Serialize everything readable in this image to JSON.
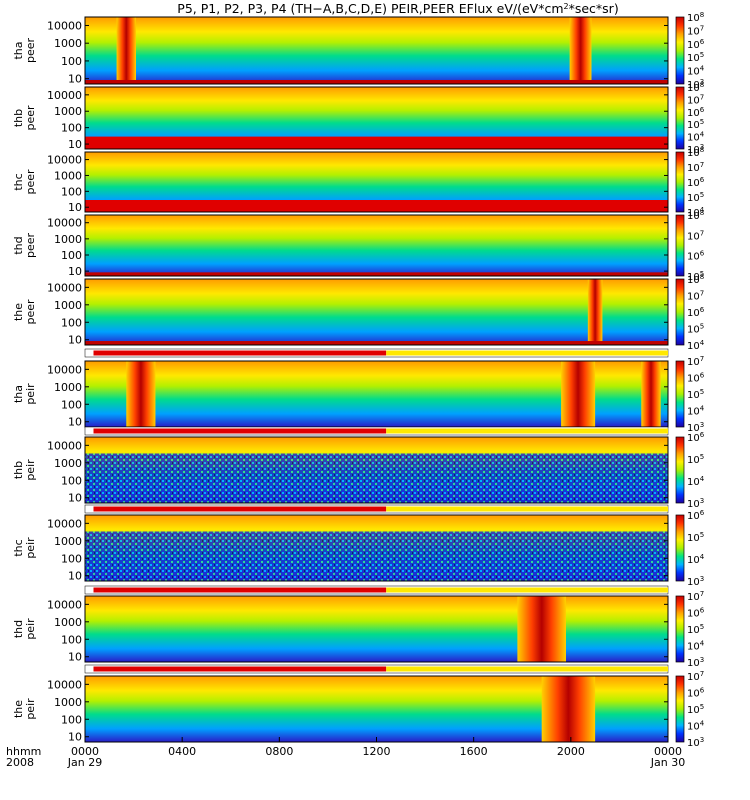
{
  "chart_data": {
    "type": "heatmap",
    "title": "P5, P1, P2, P3, P4 (TH-A,B,C,D,E) PEIR,PEER EFlux eV/(eV*cm^2*sec*sr)",
    "title_parts": {
      "main": "P5, P1, P2, P3, P4 (TH−A,B,C,D,E) PEIR,PEER EFlux eV/(eV*cm",
      "sup": "2",
      "tail": "*sec*sr)"
    },
    "x_axis": {
      "row1_label": "hhmm",
      "row2_label": "2008",
      "ticks": [
        "0000",
        "0400",
        "0800",
        "1200",
        "1600",
        "2000",
        "0000"
      ],
      "dates": [
        "Jan 29",
        "Jan 30"
      ],
      "range_hours": [
        0,
        24
      ]
    },
    "y_ticks": [
      "10",
      "100",
      "1000",
      "10000"
    ],
    "y_range_eV": [
      5,
      30000
    ],
    "y_scale": "log",
    "colormap": [
      "#1e00a0",
      "#0032ff",
      "#00b4ff",
      "#00e682",
      "#aaf000",
      "#fff000",
      "#ffa000",
      "#ff3200",
      "#c80000"
    ],
    "panels": [
      {
        "probe": "tha",
        "instrument": "peer",
        "cbar_exp": [
          3,
          8
        ],
        "qflag": false,
        "floor": "thin"
      },
      {
        "probe": "thb",
        "instrument": "peer",
        "cbar_exp": [
          3,
          8
        ],
        "qflag": false,
        "floor": "thick"
      },
      {
        "probe": "thc",
        "instrument": "peer",
        "cbar_exp": [
          4,
          8
        ],
        "qflag": false,
        "floor": "thick"
      },
      {
        "probe": "thd",
        "instrument": "peer",
        "cbar_exp": [
          5,
          8
        ],
        "qflag": false,
        "floor": "thin"
      },
      {
        "probe": "the",
        "instrument": "peer",
        "cbar_exp": [
          4,
          8
        ],
        "qflag": false,
        "floor": "thin"
      },
      {
        "probe": "tha",
        "instrument": "peir",
        "cbar_exp": [
          3,
          7
        ],
        "qflag": true,
        "floor": "none"
      },
      {
        "probe": "thb",
        "instrument": "peir",
        "cbar_exp": [
          3,
          6
        ],
        "qflag": true,
        "floor": "none"
      },
      {
        "probe": "thc",
        "instrument": "peir",
        "cbar_exp": [
          3,
          6
        ],
        "qflag": true,
        "floor": "none"
      },
      {
        "probe": "thd",
        "instrument": "peir",
        "cbar_exp": [
          3,
          7
        ],
        "qflag": true,
        "floor": "none"
      },
      {
        "probe": "the",
        "instrument": "peir",
        "cbar_exp": [
          3,
          7
        ],
        "qflag": true,
        "floor": "none"
      }
    ],
    "quality_flag": {
      "red_hours": [
        0.35,
        12.4
      ],
      "yellow_hours": [
        12.4,
        24
      ]
    }
  }
}
